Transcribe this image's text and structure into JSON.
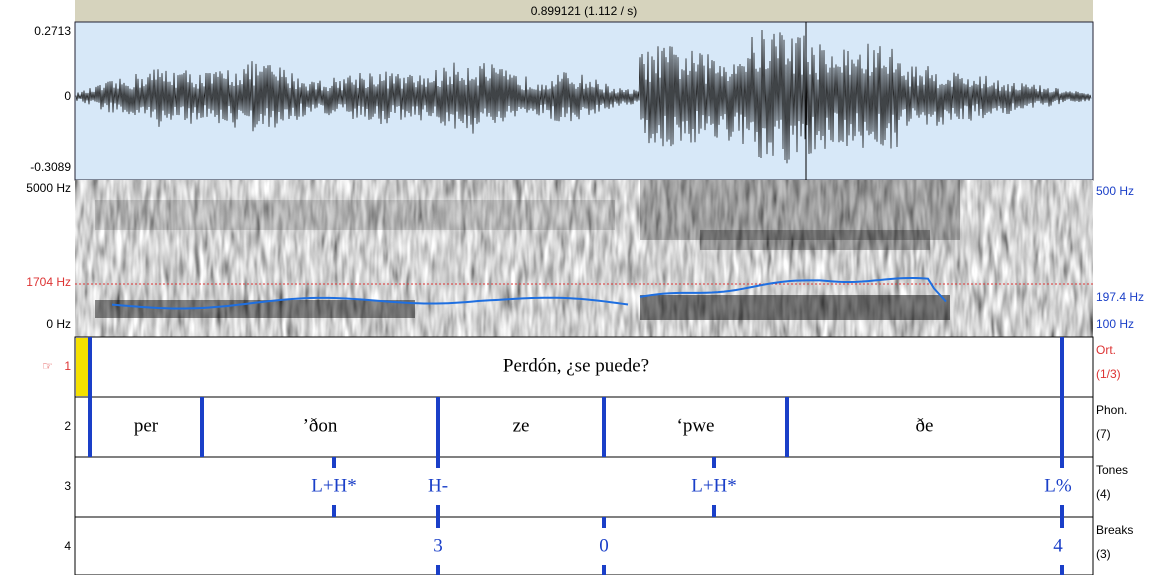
{
  "header": {
    "title": "0.899121 (1.112 / s)"
  },
  "waveform": {
    "max_label": "0.2713",
    "zero_label": "0",
    "min_label": "-0.3089"
  },
  "spectrogram": {
    "left_labels": [
      "5000 Hz",
      "1704 Hz",
      "0 Hz"
    ],
    "right_labels": [
      "500 Hz",
      "197.4 Hz",
      "100 Hz"
    ]
  },
  "tiers": [
    {
      "marker": "☞",
      "number": "1",
      "name": "Ort.",
      "count": "(1/3)",
      "labels": [
        "Perdón, ¿se puede?"
      ]
    },
    {
      "number": "2",
      "name": "Phon.",
      "count": "(7)",
      "labels": [
        "per",
        "’ðon",
        "ze",
        "‘pwe",
        "ðe"
      ]
    },
    {
      "number": "3",
      "name": "Tones",
      "count": "(4)",
      "labels": [
        "L+H*",
        "H-",
        "L+H*",
        "L%"
      ]
    },
    {
      "number": "4",
      "name": "Breaks",
      "count": "(3)",
      "labels": [
        "3",
        "0",
        "4"
      ]
    }
  ]
}
